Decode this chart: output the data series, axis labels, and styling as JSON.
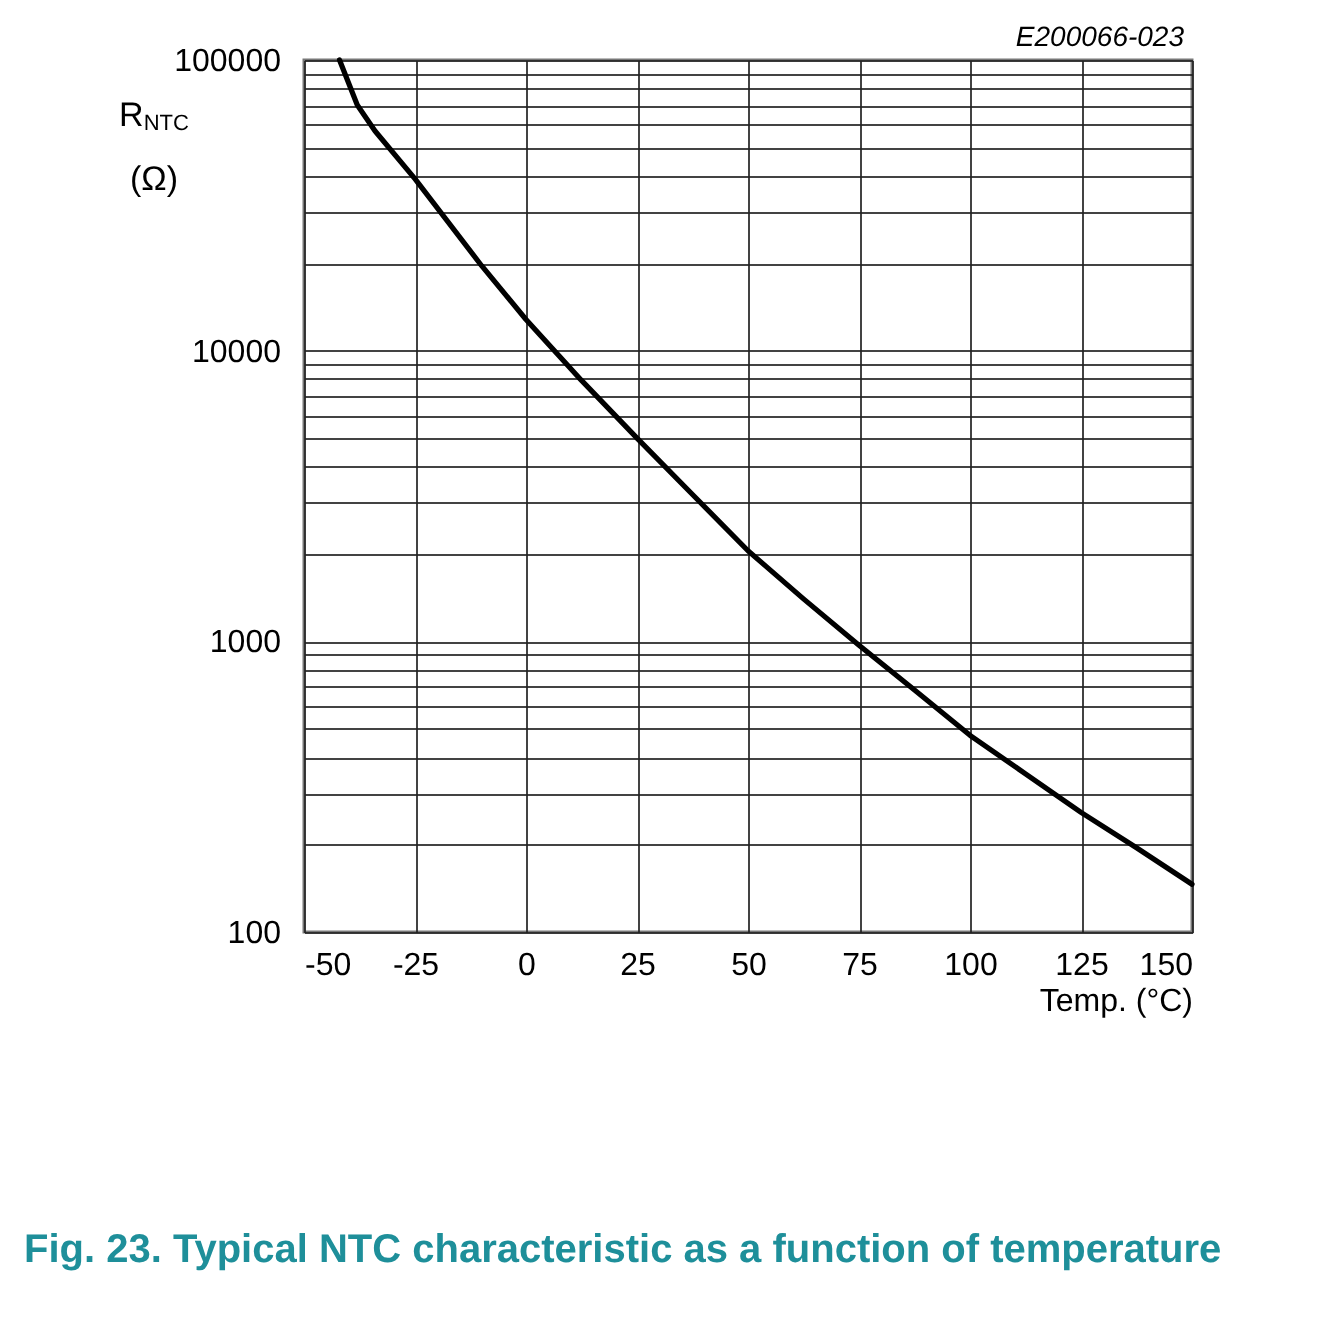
{
  "chart_data": {
    "type": "line",
    "title": "Fig. 23. Typical NTC characteristic as a function of temperature",
    "xlabel": "Temp. (°C)",
    "ylabel": "R$_{NTC}$ (Ω)",
    "annotations": [
      "E200066-023"
    ],
    "x": [
      -42,
      -38,
      -34,
      -25,
      -10,
      0,
      12.5,
      25,
      37.5,
      50,
      62.5,
      75,
      87.5,
      100,
      112.5,
      125,
      137.5,
      150
    ],
    "series": [
      {
        "color": "#000000",
        "values": [
          100000,
          70000,
          57000,
          39000,
          19600,
          12800,
          7900,
          5000,
          3200,
          2050,
          1400,
          970,
          680,
          475,
          350,
          258,
          195,
          146
        ]
      }
    ],
    "xlim": [
      -50,
      150
    ],
    "xticks": [
      -50,
      -25,
      0,
      25,
      50,
      75,
      100,
      125,
      150
    ],
    "ylim": [
      100,
      100000
    ],
    "yticks": [
      100,
      {
        "value": 200,
        "label": null
      },
      {
        "value": 300,
        "label": null
      },
      {
        "value": 400,
        "label": null
      },
      {
        "value": 500,
        "label": null
      },
      {
        "value": 600,
        "label": null
      },
      {
        "value": 700,
        "label": null
      },
      {
        "value": 800,
        "label": null
      },
      {
        "value": 900,
        "label": null
      },
      1000,
      {
        "value": 2000,
        "label": null
      },
      {
        "value": 3000,
        "label": null
      },
      {
        "value": 4000,
        "label": null
      },
      {
        "value": 5000,
        "label": null
      },
      {
        "value": 6000,
        "label": null
      },
      {
        "value": 7000,
        "label": null
      },
      {
        "value": 8000,
        "label": null
      },
      {
        "value": 9000,
        "label": null
      },
      10000,
      {
        "value": 20000,
        "label": null
      },
      {
        "value": 30000,
        "label": null
      },
      {
        "value": 40000,
        "label": null
      },
      {
        "value": 50000,
        "label": null
      },
      {
        "value": 60000,
        "label": null
      },
      {
        "value": 70000,
        "label": null
      },
      {
        "value": 80000,
        "label": null
      },
      {
        "value": 90000,
        "label": null
      },
      100000
    ],
    "log": true,
    "grid": true
  }
}
